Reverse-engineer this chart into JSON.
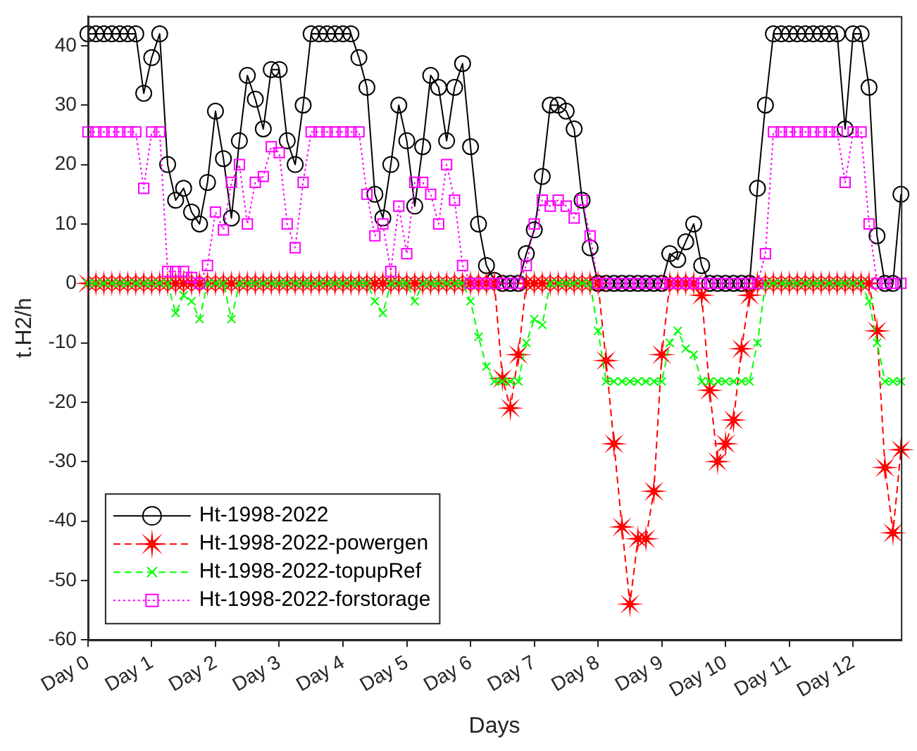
{
  "chart_data": {
    "type": "line",
    "xlabel": "Days",
    "ylabel": "t.H2/h",
    "ylim": [
      -60,
      45
    ],
    "categories": [
      "Day 0",
      null,
      null,
      null,
      null,
      null,
      null,
      null,
      "Day 1",
      null,
      null,
      null,
      null,
      null,
      null,
      null,
      "Day 2",
      null,
      null,
      null,
      null,
      null,
      null,
      null,
      "Day 3",
      null,
      null,
      null,
      null,
      null,
      null,
      null,
      "Day 4",
      null,
      null,
      null,
      null,
      null,
      null,
      null,
      "Day 5",
      null,
      null,
      null,
      null,
      null,
      null,
      null,
      "Day 6",
      null,
      null,
      null,
      null,
      null,
      null,
      null,
      "Day 7",
      null,
      null,
      null,
      null,
      null,
      null,
      null,
      "Day 8",
      null,
      null,
      null,
      null,
      null,
      null,
      null,
      "Day 9",
      null,
      null,
      null,
      null,
      null,
      null,
      null,
      "Day 10",
      null,
      null,
      null,
      null,
      null,
      null,
      null,
      "Day 11",
      null,
      null,
      null,
      null,
      null,
      null,
      null,
      "Day 12",
      null,
      null,
      null,
      null,
      null,
      null
    ],
    "yticks": [
      -60,
      -50,
      -40,
      -30,
      -20,
      -10,
      0,
      10,
      20,
      30,
      40
    ],
    "grid": false,
    "legend": "bottom left",
    "series": [
      {
        "name": "Ht-1998-2022",
        "color": "#000000",
        "marker": "circle",
        "line_style": "solid",
        "values": [
          42,
          42,
          42,
          42,
          42,
          42,
          42,
          32,
          38,
          42,
          20,
          14,
          16,
          12,
          10,
          17,
          29,
          21,
          11,
          24,
          35,
          31,
          26,
          36,
          36,
          24,
          20,
          30,
          42,
          42,
          42,
          42,
          42,
          42,
          38,
          33,
          15,
          11,
          20,
          30,
          24,
          13,
          23,
          35,
          33,
          24,
          33,
          37,
          23,
          10,
          3,
          0.5,
          0,
          0,
          0,
          5,
          9,
          18,
          30,
          30,
          29,
          26,
          14,
          6,
          0,
          0,
          0,
          0,
          0,
          0,
          0,
          0,
          0,
          5,
          4,
          7,
          10,
          3,
          0,
          0,
          0,
          0,
          0,
          0,
          16,
          30,
          42,
          42,
          42,
          42,
          42,
          42,
          42,
          42,
          42,
          26,
          42,
          42,
          33,
          8,
          0,
          0,
          15
        ]
      },
      {
        "name": "Ht-1998-2022-powergen",
        "color": "#ff0000",
        "marker": "star",
        "line_style": "dashed",
        "values": [
          0,
          0,
          0,
          0,
          0,
          0,
          0,
          0,
          0,
          0,
          0,
          0,
          0,
          0,
          0,
          0,
          0,
          0,
          0,
          0,
          0,
          0,
          0,
          0,
          0,
          0,
          0,
          0,
          0,
          0,
          0,
          0,
          0,
          0,
          0,
          0,
          0,
          0,
          0,
          0,
          0,
          0,
          0,
          0,
          0,
          0,
          0,
          0,
          0,
          0,
          0,
          0,
          -16,
          -21,
          -12,
          0,
          0,
          0,
          0,
          0,
          0,
          0,
          0,
          0,
          0,
          -13,
          -27,
          -41,
          -54,
          -43,
          -43,
          -35,
          -12,
          0,
          0,
          0,
          0,
          -2,
          -18,
          -30,
          -27,
          -23,
          -11,
          -2,
          0,
          0,
          0,
          0,
          0,
          0,
          0,
          0,
          0,
          0,
          0,
          0,
          0,
          0,
          0,
          -8,
          -31,
          -42,
          -28
        ]
      },
      {
        "name": "Ht-1998-2022-topupRef",
        "color": "#00ff00",
        "marker": "cross",
        "line_style": "dashed",
        "values": [
          0,
          0,
          0,
          0,
          0,
          0,
          0,
          0,
          0,
          0,
          0,
          -5,
          -2,
          -3,
          -6,
          0,
          0,
          0,
          -6,
          0,
          0,
          0,
          0,
          0,
          0,
          0,
          0,
          0,
          0,
          0,
          0,
          0,
          0,
          0,
          0,
          0,
          -3,
          -5,
          0,
          0,
          0,
          -3,
          0,
          0,
          0,
          0,
          0,
          0,
          -3,
          -9,
          -14,
          -16.5,
          -16.5,
          -16.5,
          -16.5,
          -10,
          -6,
          -7,
          0,
          0,
          0,
          0,
          0,
          0,
          -8,
          -16.5,
          -16.5,
          -16.5,
          -16.5,
          -16.5,
          -16.5,
          -16.5,
          -16.5,
          -10,
          -8,
          -11,
          -12,
          -16.5,
          -16.5,
          -16.5,
          -16.5,
          -16.5,
          -16.5,
          -16.5,
          -10,
          0,
          0,
          0,
          0,
          0,
          0,
          0,
          0,
          0,
          0,
          0,
          0,
          0,
          -3,
          -10,
          -16.5,
          -16.5,
          -16.5
        ]
      },
      {
        "name": "Ht-1998-2022-forstorage",
        "color": "#ff00ff",
        "marker": "square",
        "line_style": "dotted",
        "values": [
          25.5,
          25.5,
          25.5,
          25.5,
          25.5,
          25.5,
          25.5,
          16,
          25.5,
          25.5,
          2,
          2,
          2,
          1,
          0,
          3,
          12,
          9,
          17,
          20,
          10,
          17,
          18,
          23,
          22,
          10,
          6,
          17,
          25.5,
          25.5,
          25.5,
          25.5,
          25.5,
          25.5,
          25.5,
          15,
          8,
          10,
          2,
          13,
          5,
          17,
          17,
          15,
          10,
          20,
          14,
          3,
          0,
          0,
          0,
          0,
          0,
          0,
          0,
          3,
          10,
          14,
          13,
          14,
          13,
          11,
          14,
          8,
          0,
          0,
          0,
          0,
          0,
          0,
          0,
          0,
          0,
          0,
          0,
          0,
          0,
          0,
          0,
          0,
          0,
          0,
          0,
          0,
          0,
          5,
          25.5,
          25.5,
          25.5,
          25.5,
          25.5,
          25.5,
          25.5,
          25.5,
          25.5,
          17,
          25.5,
          25.5,
          10,
          0,
          0,
          0,
          0
        ]
      }
    ]
  }
}
